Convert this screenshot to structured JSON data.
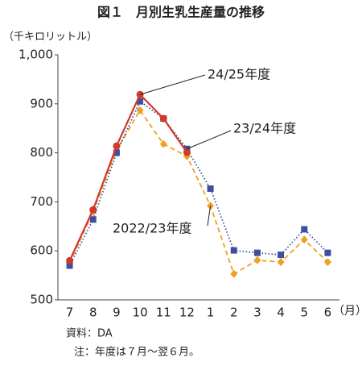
{
  "chart_data": {
    "type": "line",
    "title": "図１　月別生乳生産量の推移",
    "y_label": "（千キロリットル）",
    "x_unit": "（月）",
    "categories": [
      "7",
      "8",
      "9",
      "10",
      "11",
      "12",
      "1",
      "2",
      "3",
      "4",
      "5",
      "6"
    ],
    "series": [
      {
        "name": "24/25年度",
        "color": "#d03a2a",
        "dash": "solid",
        "marker": "circle",
        "values": [
          580,
          684,
          814,
          919,
          870,
          801,
          null,
          null,
          null,
          null,
          null,
          null
        ]
      },
      {
        "name": "23/24年度",
        "color": "#3f4fa0",
        "dash": "dotted",
        "marker": "square",
        "values": [
          570,
          664,
          800,
          905,
          870,
          808,
          727,
          601,
          596,
          592,
          644,
          596
        ]
      },
      {
        "name": "2022/23年度",
        "color": "#f0a020",
        "dash": "dashed",
        "marker": "diamond",
        "values": [
          575,
          680,
          805,
          887,
          818,
          793,
          692,
          553,
          581,
          577,
          623,
          577
        ]
      }
    ],
    "ylim": [
      500,
      1000
    ],
    "yticks": [
      500,
      600,
      700,
      800,
      900,
      {
        "value": 1000,
        "label": "1,000"
      }
    ],
    "grid": false,
    "notes": [
      "資料：DA",
      "注：年度は７月～翌６月。"
    ]
  }
}
